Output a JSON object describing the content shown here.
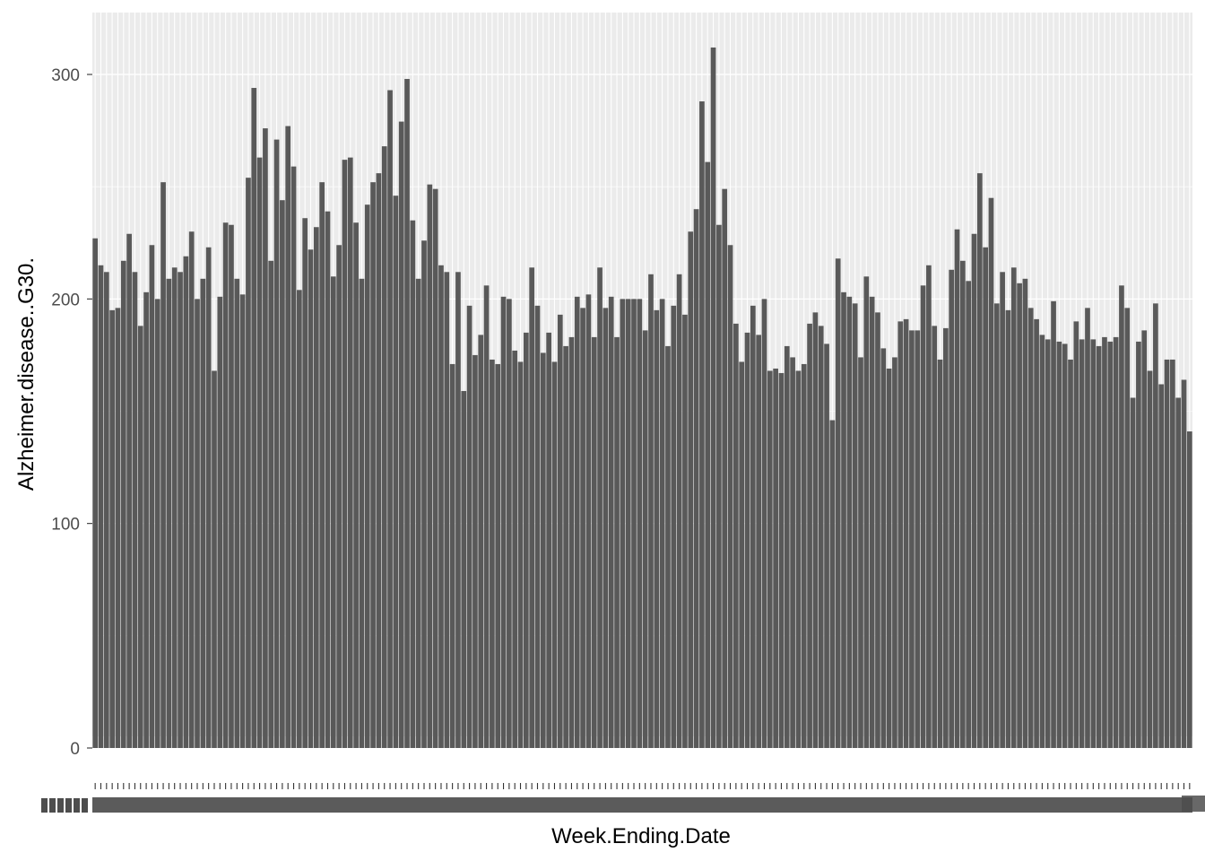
{
  "chart_data": {
    "type": "bar",
    "title": "",
    "xlabel": "Week.Ending.Date",
    "ylabel": "Alzheimer.disease..G30.",
    "ylim": [
      0,
      328
    ],
    "yticks": [
      0,
      100,
      200,
      300
    ],
    "grid": true,
    "x_tick_labels_legible": false,
    "colors": {
      "bar": "#595959",
      "panel": "#ebebeb",
      "grid_major": "#ffffff",
      "tick_text": "#4d4d4d",
      "axis_title": "#000000"
    },
    "values": [
      227,
      215,
      212,
      195,
      196,
      217,
      229,
      212,
      188,
      203,
      224,
      200,
      252,
      209,
      214,
      212,
      219,
      230,
      200,
      209,
      223,
      168,
      201,
      234,
      233,
      209,
      202,
      254,
      294,
      263,
      276,
      217,
      271,
      244,
      277,
      259,
      204,
      236,
      222,
      232,
      252,
      239,
      210,
      224,
      262,
      263,
      234,
      209,
      242,
      252,
      256,
      268,
      293,
      246,
      279,
      298,
      235,
      209,
      226,
      251,
      249,
      215,
      212,
      171,
      212,
      159,
      197,
      175,
      184,
      206,
      173,
      171,
      201,
      200,
      177,
      172,
      185,
      214,
      197,
      176,
      185,
      172,
      193,
      179,
      183,
      201,
      196,
      202,
      183,
      214,
      196,
      201,
      183,
      200,
      200,
      200,
      200,
      186,
      211,
      195,
      200,
      179,
      197,
      211,
      193,
      230,
      240,
      288,
      261,
      312,
      233,
      249,
      224,
      189,
      172,
      185,
      197,
      184,
      200,
      168,
      169,
      167,
      179,
      174,
      168,
      171,
      189,
      194,
      188,
      180,
      146,
      218,
      203,
      201,
      198,
      174,
      210,
      201,
      194,
      178,
      169,
      174,
      190,
      191,
      186,
      186,
      206,
      215,
      188,
      173,
      187,
      213,
      231,
      217,
      208,
      229,
      256,
      223,
      245,
      198,
      212,
      195,
      214,
      207,
      209,
      196,
      191,
      184,
      182,
      199,
      181,
      180,
      173,
      190,
      182,
      196,
      182,
      179,
      183,
      181,
      183,
      206,
      196,
      156,
      181,
      186,
      168,
      198,
      162,
      173,
      173,
      156,
      164,
      141
    ]
  }
}
